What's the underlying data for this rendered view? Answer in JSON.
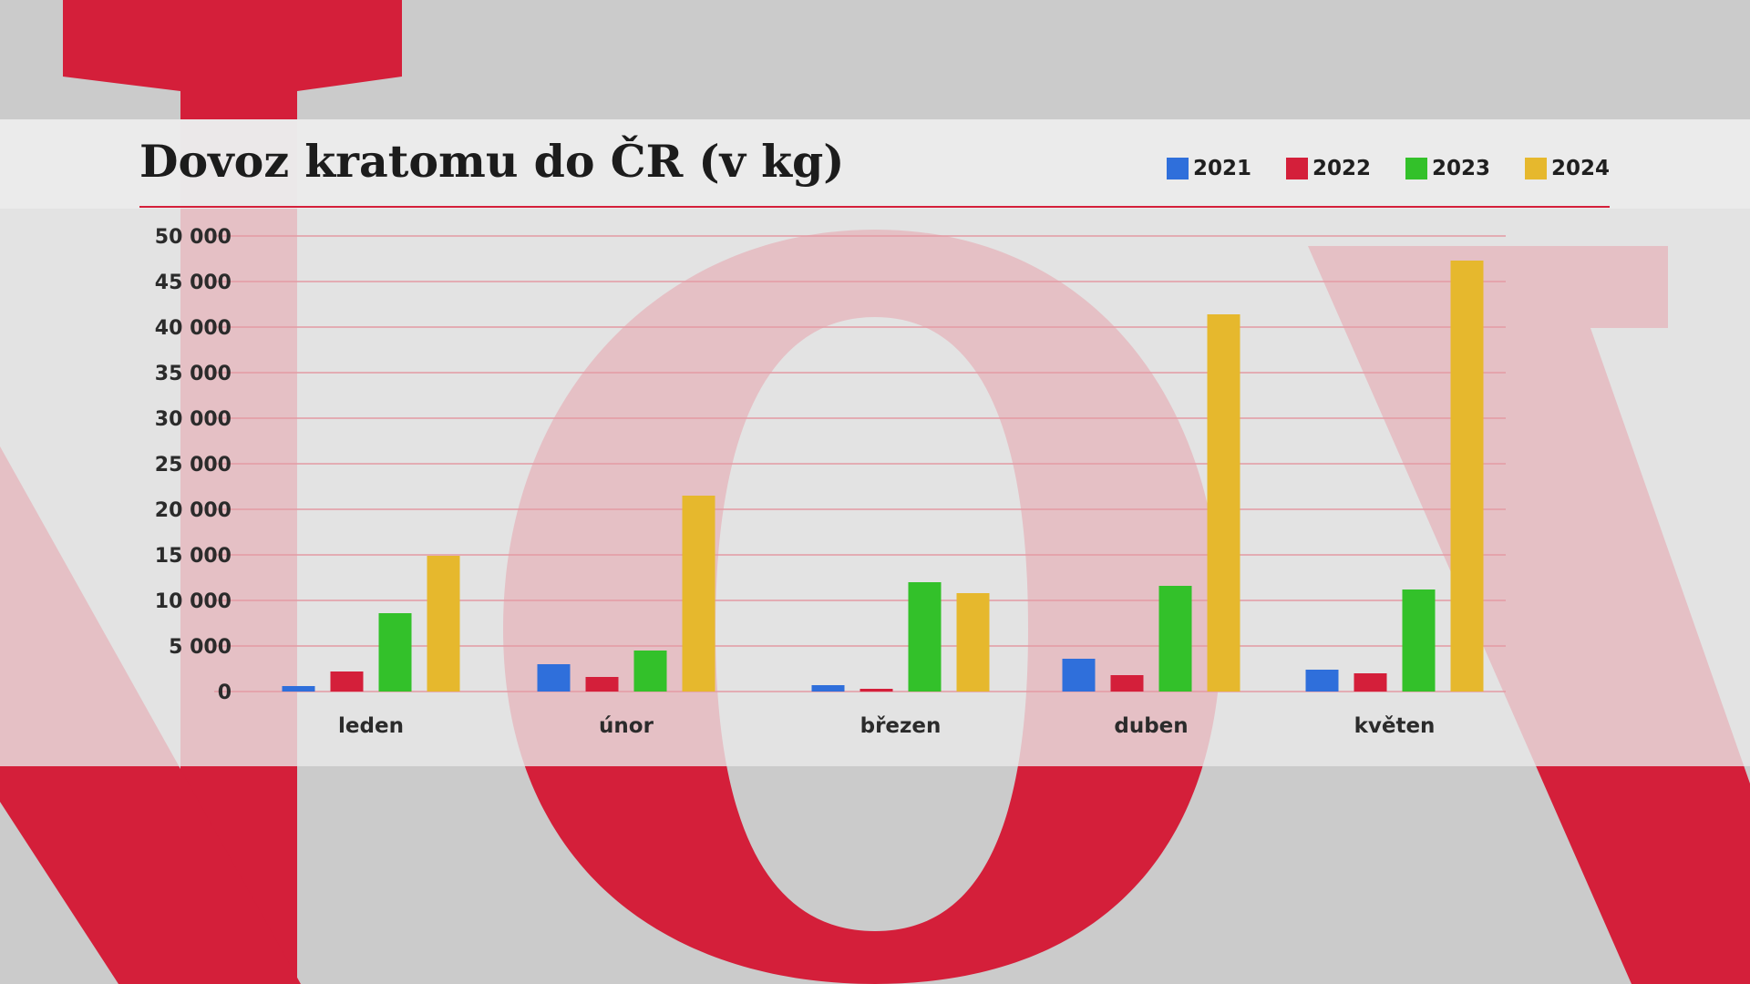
{
  "header": {
    "title": "Dovoz kratomu do ČR (v kg)"
  },
  "legend": [
    {
      "label": "2021",
      "color": "#2f6fdb"
    },
    {
      "label": "2022",
      "color": "#d41f3a"
    },
    {
      "label": "2023",
      "color": "#33c12a"
    },
    {
      "label": "2024",
      "color": "#e6b82d"
    }
  ],
  "colors": {
    "accent": "#d41f3a",
    "background": "#cbcbcb"
  },
  "chart_data": {
    "type": "bar",
    "title": "Dovoz kratomu do ČR (v kg)",
    "xlabel": "",
    "ylabel": "",
    "categories": [
      "leden",
      "únor",
      "březen",
      "duben",
      "květen"
    ],
    "series": [
      {
        "name": "2021",
        "color": "#2f6fdb",
        "values": [
          600,
          3000,
          700,
          3600,
          2400
        ]
      },
      {
        "name": "2022",
        "color": "#d41f3a",
        "values": [
          2200,
          1600,
          300,
          1800,
          2000
        ]
      },
      {
        "name": "2023",
        "color": "#33c12a",
        "values": [
          8600,
          4500,
          12000,
          11600,
          11200
        ]
      },
      {
        "name": "2024",
        "color": "#e6b82d",
        "values": [
          14900,
          21500,
          10800,
          41400,
          47300
        ]
      }
    ],
    "ylim": [
      0,
      50000
    ],
    "yticks": [
      0,
      5000,
      10000,
      15000,
      20000,
      25000,
      30000,
      35000,
      40000,
      45000,
      50000
    ],
    "ytick_labels": [
      "0",
      "5 000",
      "10 000",
      "15 000",
      "20 000",
      "25 000",
      "30 000",
      "35 000",
      "40 000",
      "45 000",
      "50 000"
    ],
    "grid": true,
    "legend_position": "top-right"
  }
}
